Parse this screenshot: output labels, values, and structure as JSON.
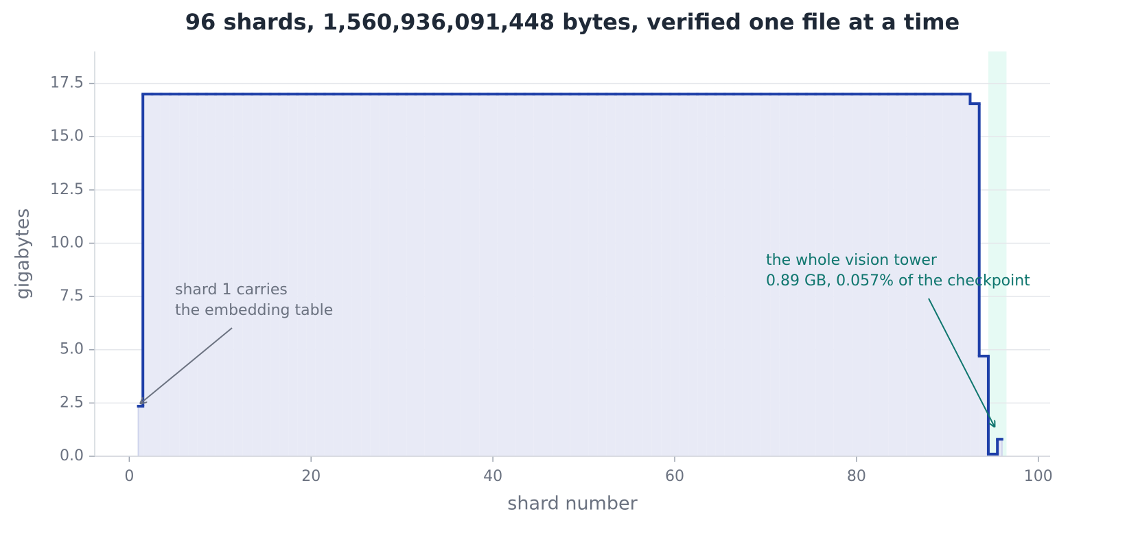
{
  "chart_data": {
    "type": "step",
    "title": "96 shards, 1,560,936,091,448 bytes, verified one file at a time",
    "xlabel": "shard number",
    "ylabel": "gigabytes",
    "x": [
      1,
      2,
      3,
      4,
      5,
      6,
      7,
      8,
      9,
      10,
      11,
      12,
      13,
      14,
      15,
      16,
      17,
      18,
      19,
      20,
      21,
      22,
      23,
      24,
      25,
      26,
      27,
      28,
      29,
      30,
      31,
      32,
      33,
      34,
      35,
      36,
      37,
      38,
      39,
      40,
      41,
      42,
      43,
      44,
      45,
      46,
      47,
      48,
      49,
      50,
      51,
      52,
      53,
      54,
      55,
      56,
      57,
      58,
      59,
      60,
      61,
      62,
      63,
      64,
      65,
      66,
      67,
      68,
      69,
      70,
      71,
      72,
      73,
      74,
      75,
      76,
      77,
      78,
      79,
      80,
      81,
      82,
      83,
      84,
      85,
      86,
      87,
      88,
      89,
      90,
      91,
      92,
      93,
      94,
      95,
      96
    ],
    "series": [
      {
        "color": "#1e3fa8",
        "fill": "#e8eaf6",
        "values": [
          2.35,
          17,
          17,
          17,
          17,
          17,
          17,
          17,
          17,
          17,
          17,
          17,
          17,
          17,
          17,
          17,
          17,
          17,
          17,
          17,
          17,
          17,
          17,
          17,
          17,
          17,
          17,
          17,
          17,
          17,
          17,
          17,
          17,
          17,
          17,
          17,
          17,
          17,
          17,
          17,
          17,
          17,
          17,
          17,
          17,
          17,
          17,
          17,
          17,
          17,
          17,
          17,
          17,
          17,
          17,
          17,
          17,
          17,
          17,
          17,
          17,
          17,
          17,
          17,
          17,
          17,
          17,
          17,
          17,
          17,
          17,
          17,
          17,
          17,
          17,
          17,
          17,
          17,
          17,
          17,
          17,
          17,
          17,
          17,
          17,
          17,
          17,
          17,
          17,
          17,
          17,
          17,
          16.55,
          4.7,
          0.1,
          0.8
        ]
      }
    ],
    "highlight_span": {
      "xmin": 94.5,
      "xmax": 96.5,
      "color": "#e6faf4"
    },
    "annotations": [
      {
        "lines": [
          "shard 1 carries",
          "the embedding table"
        ],
        "color": "#6b7280"
      },
      {
        "lines": [
          "the whole vision tower",
          "0.89 GB, 0.057% of the checkpoint"
        ],
        "color": "#0f766e"
      }
    ],
    "xlim": [
      -3.8,
      101.3
    ],
    "xticks": [
      0,
      20,
      40,
      60,
      80,
      100
    ],
    "ylim": [
      0,
      19
    ],
    "yticks": [
      {
        "value": 0,
        "label": "0.0"
      },
      2.5,
      {
        "value": 5,
        "label": "5.0"
      },
      7.5,
      {
        "value": 10,
        "label": "10.0"
      },
      12.5,
      {
        "value": 15,
        "label": "15.0"
      },
      17.5
    ],
    "grid": true
  }
}
